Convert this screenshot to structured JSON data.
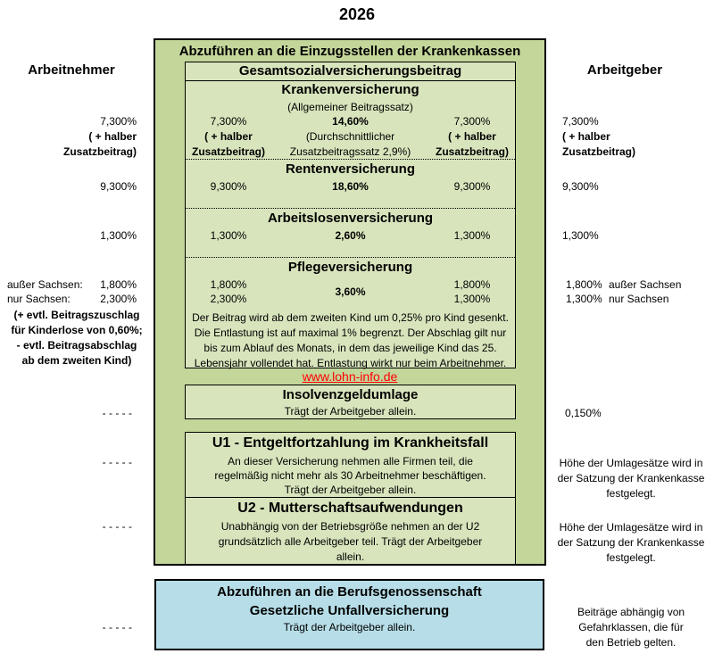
{
  "year": "2026",
  "employee_heading": "Arbeitnehmer",
  "employer_heading": "Arbeitgeber",
  "kk_box_title": "Abzuführen an die Einzugsstellen der Krankenkassen",
  "gsv_title": "Gesamtsozialversicherungsbeitrag",
  "kv": {
    "title": "Krankenversicherung",
    "subtitle": "(Allgemeiner Beitragssatz)",
    "an": "7,300%",
    "total": "14,60%",
    "ag": "7,300%",
    "half1": "( + halber",
    "half2": "Zusatzbeitrag)",
    "note1": "(Durchschnittlicher",
    "note2": "Zusatzbeitragssatz 2,9%)"
  },
  "rv": {
    "title": "Rentenversicherung",
    "an": "9,300%",
    "total": "18,60%",
    "ag": "9,300%"
  },
  "av": {
    "title": "Arbeitslosenversicherung",
    "an": "1,300%",
    "total": "2,60%",
    "ag": "1,300%"
  },
  "pv": {
    "title": "Pflegeversicherung",
    "an1": "1,800%",
    "an2": "2,300%",
    "total": "3,60%",
    "ag1": "1,800%",
    "ag2": "1,300%",
    "left_label1": "außer Sachsen:",
    "left_label2": "nur Sachsen:",
    "right_label1": "außer Sachsen",
    "right_label2": "nur Sachsen",
    "left_note": [
      "(+ evtl. Beitragszuschlag",
      "für Kinderlose von 0,60%;",
      "- evtl. Beitragsabschlag",
      "ab dem zweiten Kind)"
    ],
    "info": "Der Beitrag wird ab dem zweiten Kind um 0,25% pro Kind gesenkt. Die Entlastung ist auf maximal 1% begrenzt. Der Abschlag gilt nur bis zum Ablauf des Monats, in dem das jeweilige Kind das 25. Lebensjahr vollendet hat. Entlastung wirkt nur beim Arbeitnehmer."
  },
  "link": "www.lohn-info.de",
  "insolvenz": {
    "title": "Insolvenzgeldumlage",
    "text": "Trägt der Arbeitgeber allein.",
    "an": "- - - - -",
    "ag": "0,150%"
  },
  "u1": {
    "title": "U1 - Entgeltfortzahlung im Krankheitsfall",
    "text": "An dieser Versicherung nehmen alle Firmen teil, die regelmäßig nicht mehr als 30 Arbeitnehmer beschäftigen. Trägt der Arbeitgeber allein.",
    "an": "- - - - -",
    "ag": "Höhe der Umlagesätze wird in der Satzung der Krankenkasse festgelegt."
  },
  "u2": {
    "title": "U2 - Mutterschaftsaufwendungen",
    "text": "Unabhängig von der Betriebsgröße nehmen an der U2 grundsätzlich alle Arbeitgeber teil. Trägt der Arbeitgeber allein.",
    "an": "- - - - -",
    "ag": "Höhe der Umlagesätze wird in der Satzung der Krankenkasse festgelegt."
  },
  "bg": {
    "title1": "Abzuführen an die Berufsgenossenschaft",
    "title2": "Gesetzliche Unfallversicherung",
    "text": "Trägt der Arbeitgeber allein.",
    "an": "- - - - -",
    "ag": "Beiträge abhängig von Gefahrklassen, die für den Betrieb gelten."
  },
  "colors": {
    "green_outer": "#c4d79b",
    "green_inner": "#d8e4bc",
    "blue": "#b7dee8",
    "link": "#ff0000"
  }
}
